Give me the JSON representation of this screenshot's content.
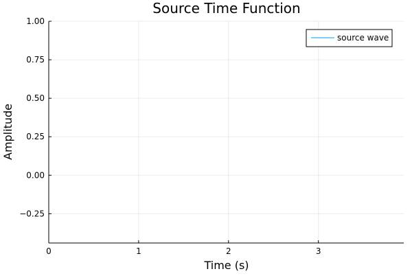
{
  "chart_data": {
    "type": "line",
    "title": "Source Time Function",
    "xlabel": "Time (s)",
    "ylabel": "Amplitude",
    "xlim": [
      0,
      3.95
    ],
    "ylim": [
      -0.44,
      1.0
    ],
    "x_ticks": [
      0,
      1,
      2,
      3
    ],
    "x_tick_labels": [
      "0",
      "1",
      "2",
      "3"
    ],
    "y_ticks": [
      -0.25,
      0.0,
      0.25,
      0.5,
      0.75,
      1.0
    ],
    "y_tick_labels": [
      "−0.25",
      "0.00",
      "0.25",
      "0.50",
      "0.75",
      "1.00"
    ],
    "grid": true,
    "legend_position": "top-right",
    "series": [
      {
        "name": "source wave",
        "color": "#009AFA",
        "x": [],
        "y": []
      }
    ]
  }
}
